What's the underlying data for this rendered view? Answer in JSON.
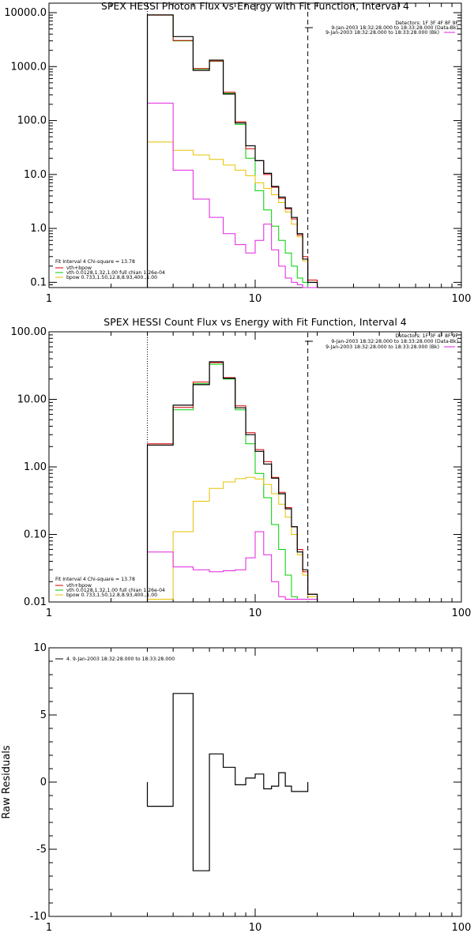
{
  "colors": {
    "data": "#000000",
    "total": "#d40000",
    "vth": "#00cc00",
    "bpow": "#e6c200",
    "background": "#e020e0"
  },
  "chart_data": [
    {
      "type": "line",
      "title": "SPEX HESSI Photon Flux vs Energy with Fit Function, Interval 4",
      "x_scale": "log",
      "y_scale": "log",
      "xlim": [
        1,
        100
      ],
      "ylim": [
        0.08,
        15000
      ],
      "x_ticks": [
        {
          "value": 1,
          "label": "1"
        },
        {
          "value": 10,
          "label": "10"
        },
        {
          "value": 100,
          "label": "100"
        }
      ],
      "y_ticks": [
        {
          "value": 0.1,
          "label": "0.1"
        },
        {
          "value": 1,
          "label": "1.0"
        },
        {
          "value": 10,
          "label": "10.0"
        },
        {
          "value": 100,
          "label": "100.0"
        },
        {
          "value": 1000,
          "label": "1000.0"
        },
        {
          "value": 10000,
          "label": "10000.0"
        }
      ],
      "annotations_top": [
        "Detectors: 1F 3F 4F 8F 9F",
        "9-Jan-2003 18:32:28.000 to 18:33:28.000 (Data-Bk)",
        "9-Jan-2003 18:32:28.000 to 18:33:28.000 (Bk)"
      ],
      "annotations_bottom": [
        "Fit Interval 4   Chi-square = 13.78",
        "vth+bpow",
        "vth 0.0128,1.32,1.00  full chian 1.26e-04",
        "bpow 0.733,1.50,12.8,8.93,400.,1.00"
      ],
      "vlines": [
        {
          "x": 3.0,
          "style": "dotted"
        },
        {
          "x": 18.0,
          "style": "dashed"
        }
      ],
      "bin_edges": [
        3.0,
        4.0,
        5.0,
        6.0,
        7.0,
        8.0,
        9.0,
        10.0,
        11.0,
        12.0,
        13.0,
        14.0,
        15.0,
        16.0,
        17.0,
        18.0,
        20.0
      ],
      "series": [
        {
          "key": "vth",
          "values": [
            9000,
            3000,
            900,
            1250,
            320,
            85,
            20,
            5.0,
            2.2,
            1.1,
            0.6,
            0.35,
            0.2,
            0.12,
            0.1,
            0.08
          ]
        },
        {
          "key": "bpow",
          "values": [
            40,
            28,
            23,
            19,
            15,
            12,
            9.5,
            7.0,
            5.5,
            4.2,
            3.0,
            2.0,
            1.2,
            0.7,
            0.25,
            0.1
          ]
        },
        {
          "key": "background",
          "values": [
            210,
            12,
            3.5,
            1.6,
            0.8,
            0.5,
            0.35,
            0.6,
            1.2,
            0.4,
            0.2,
            0.12,
            0.1,
            0.09,
            0.08,
            0.08
          ]
        },
        {
          "key": "total",
          "values": [
            9000,
            3050,
            920,
            1270,
            335,
            95,
            30,
            18,
            10,
            5.8,
            3.6,
            2.3,
            1.5,
            0.75,
            0.3,
            0.11
          ]
        },
        {
          "key": "data",
          "values": [
            9100,
            3600,
            850,
            1320,
            310,
            90,
            34,
            18,
            10.5,
            6.0,
            3.8,
            2.4,
            1.6,
            0.8,
            0.27,
            0.1
          ]
        }
      ]
    },
    {
      "type": "line",
      "title": "SPEX HESSI Count Flux vs Energy with Fit Function, Interval 4",
      "x_scale": "log",
      "y_scale": "log",
      "xlim": [
        1,
        100
      ],
      "ylim": [
        0.01,
        100
      ],
      "x_ticks": [
        {
          "value": 1,
          "label": "1"
        },
        {
          "value": 10,
          "label": "10"
        },
        {
          "value": 100,
          "label": "100"
        }
      ],
      "y_ticks": [
        {
          "value": 0.01,
          "label": "0.01"
        },
        {
          "value": 0.1,
          "label": "0.10"
        },
        {
          "value": 1,
          "label": "1.00"
        },
        {
          "value": 10,
          "label": "10.00"
        },
        {
          "value": 100,
          "label": "100.00"
        }
      ],
      "annotations_top": [
        "Detectors: 1F 3F 4F 8F 9F",
        "9-Jan-2003 18:32:28.000 to 18:33:28.000 (Data-Bk)",
        "9-Jan-2003 18:32:28.000 to 18:33:28.000 (Bk)"
      ],
      "annotations_bottom": [
        "Fit Interval 4   Chi-square = 13.78",
        "vth+bpow",
        "vth 0.0128,1.32,1.00  full chian 1.26e-04",
        "bpow 0.733,1.50,12.8,8.93,400.,1.00"
      ],
      "vlines": [
        {
          "x": 3.0,
          "style": "dotted"
        },
        {
          "x": 18.0,
          "style": "dashed"
        }
      ],
      "bin_edges": [
        3.0,
        4.0,
        5.0,
        6.0,
        7.0,
        8.0,
        9.0,
        10.0,
        11.0,
        12.0,
        13.0,
        14.0,
        15.0,
        16.0,
        17.0,
        18.0,
        20.0
      ],
      "series": [
        {
          "key": "vth",
          "values": [
            2.1,
            7.0,
            17.0,
            33.0,
            20.0,
            7.0,
            2.2,
            0.8,
            0.35,
            0.14,
            0.06,
            0.025,
            0.012,
            0.011,
            0.011,
            0.011
          ]
        },
        {
          "key": "bpow",
          "values": [
            0.0,
            0.0,
            0.0,
            0.0,
            0.0,
            0.0,
            0.0,
            0.0,
            0.0,
            0.0,
            0.0,
            0.0,
            0.0,
            0.0,
            0.0,
            0.0
          ]
        },
        {
          "key": "bpow_curve",
          "values": [
            0.011,
            0.11,
            0.31,
            0.48,
            0.6,
            0.67,
            0.7,
            0.66,
            0.55,
            0.4,
            0.28,
            0.18,
            0.1,
            0.05,
            0.025,
            0.012
          ]
        },
        {
          "key": "background",
          "values": [
            0.055,
            0.033,
            0.03,
            0.028,
            0.029,
            0.03,
            0.045,
            0.11,
            0.05,
            0.02,
            0.012,
            0.011,
            0.011,
            0.011,
            0.011,
            0.011
          ]
        },
        {
          "key": "total",
          "values": [
            2.2,
            7.6,
            18.0,
            35.0,
            21.0,
            8.0,
            3.2,
            1.8,
            1.2,
            0.7,
            0.42,
            0.25,
            0.13,
            0.06,
            0.028,
            0.013
          ]
        },
        {
          "key": "data",
          "values": [
            2.1,
            8.2,
            16.5,
            36.0,
            20.5,
            7.5,
            3.0,
            1.7,
            1.1,
            0.68,
            0.4,
            0.24,
            0.13,
            0.055,
            0.03,
            0.013
          ]
        }
      ]
    },
    {
      "type": "line",
      "title": "",
      "ylabel": "Raw Residuals",
      "x_scale": "log",
      "y_scale": "linear",
      "xlim": [
        1,
        100
      ],
      "ylim": [
        -10,
        10
      ],
      "x_ticks": [
        {
          "value": 1,
          "label": "1"
        },
        {
          "value": 10,
          "label": "10"
        },
        {
          "value": 100,
          "label": "100"
        }
      ],
      "y_ticks": [
        {
          "value": -10,
          "label": "-10"
        },
        {
          "value": -5,
          "label": "-5"
        },
        {
          "value": 0,
          "label": "0"
        },
        {
          "value": 5,
          "label": "5"
        },
        {
          "value": 10,
          "label": "10"
        }
      ],
      "legend_entry": "4.  9-Jan-2003 18:32:28.000 to 18:33:28.000",
      "bin_edges": [
        3.0,
        4.0,
        5.0,
        6.0,
        7.0,
        8.0,
        9.0,
        10.0,
        11.0,
        12.0,
        13.0,
        14.0,
        15.0,
        16.0,
        17.0,
        18.0
      ],
      "series": [
        {
          "key": "data",
          "values": [
            -1.8,
            6.6,
            -6.6,
            2.1,
            1.1,
            -0.2,
            0.3,
            0.6,
            -0.5,
            -0.3,
            0.7,
            -0.3,
            -0.7,
            -0.7,
            -0.7
          ]
        }
      ]
    }
  ]
}
